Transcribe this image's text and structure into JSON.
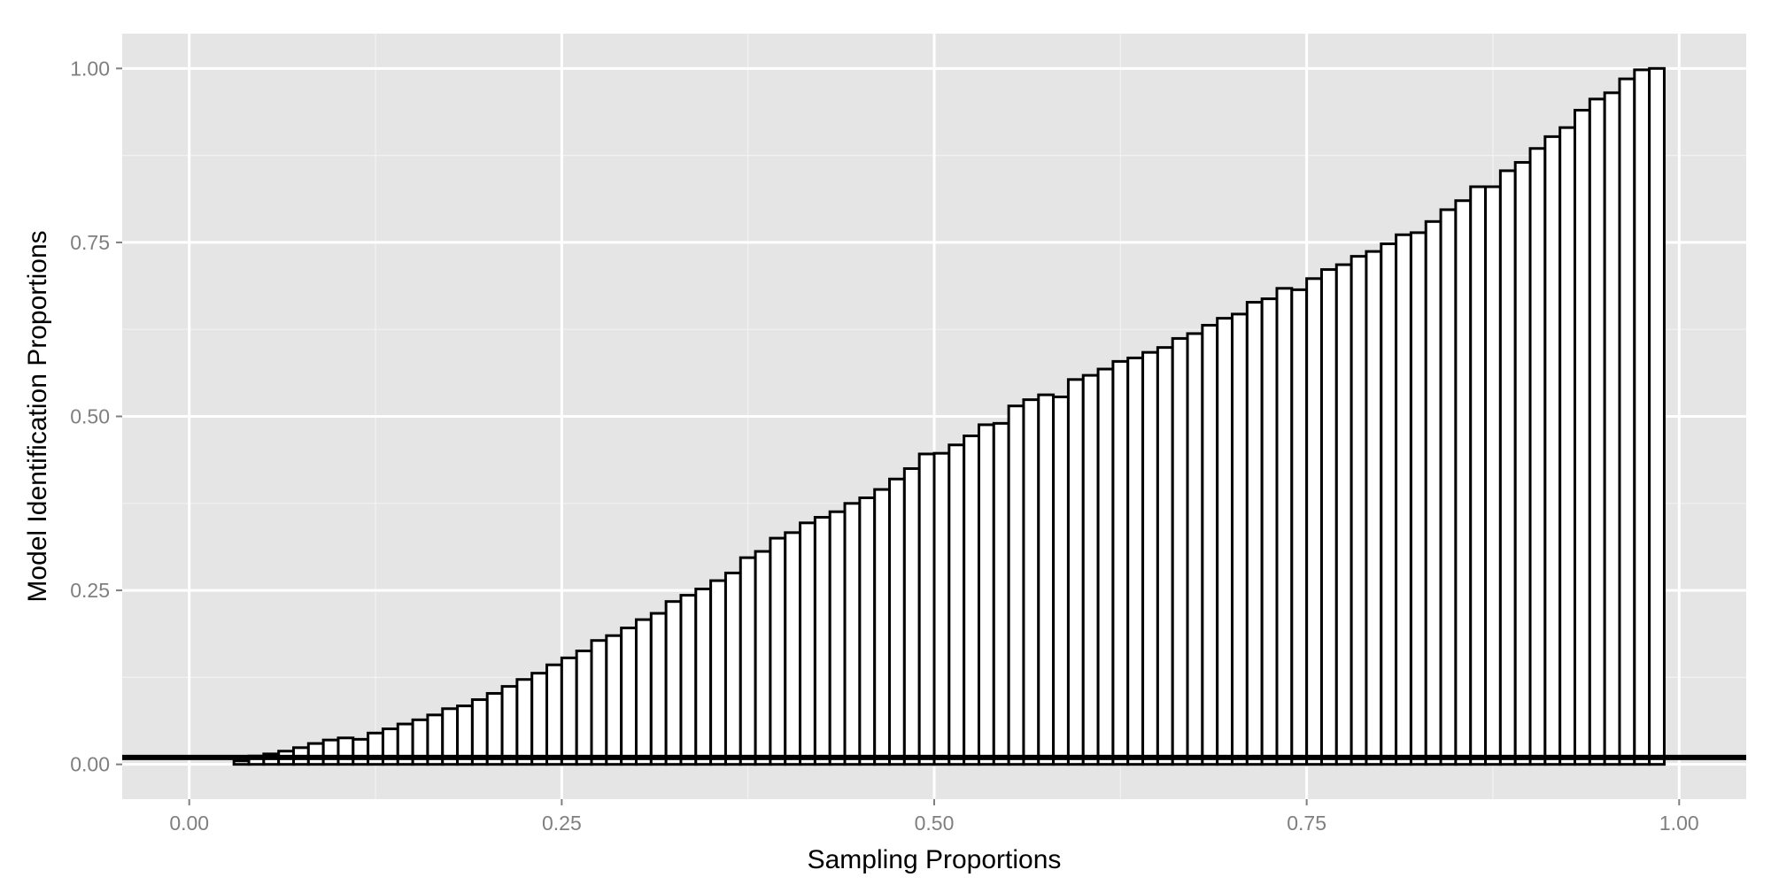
{
  "chart_data": {
    "type": "bar",
    "xlabel": "Sampling Proportions",
    "ylabel": "Model Identification Proportions",
    "xlim": [
      -0.045,
      1.045
    ],
    "ylim": [
      -0.05,
      1.05
    ],
    "x_ticks": [
      "0.00",
      "0.25",
      "0.50",
      "0.75",
      "1.00"
    ],
    "y_ticks": [
      "0.00",
      "0.25",
      "0.50",
      "0.75",
      "1.00"
    ],
    "x_tick_values": [
      0,
      0.25,
      0.5,
      0.75,
      1
    ],
    "y_tick_values": [
      0,
      0.25,
      0.5,
      0.75,
      1
    ],
    "bin_width": 0.01,
    "x": [
      0.01,
      0.02,
      0.03,
      0.04,
      0.05,
      0.06,
      0.07,
      0.08,
      0.09,
      0.1,
      0.11,
      0.12,
      0.13,
      0.14,
      0.15,
      0.16,
      0.17,
      0.18,
      0.19,
      0.2,
      0.21,
      0.22,
      0.23,
      0.24,
      0.25,
      0.26,
      0.27,
      0.28,
      0.29,
      0.3,
      0.31,
      0.32,
      0.33,
      0.34,
      0.35,
      0.36,
      0.37,
      0.38,
      0.39,
      0.4,
      0.41,
      0.42,
      0.43,
      0.44,
      0.45,
      0.46,
      0.47,
      0.48,
      0.49,
      0.5,
      0.51,
      0.52,
      0.53,
      0.54,
      0.55,
      0.56,
      0.57,
      0.58,
      0.59,
      0.6,
      0.61,
      0.62,
      0.63,
      0.64,
      0.65,
      0.66,
      0.67,
      0.68,
      0.69,
      0.7,
      0.71,
      0.72,
      0.73,
      0.74,
      0.75,
      0.76,
      0.77,
      0.78,
      0.79,
      0.8,
      0.81,
      0.82,
      0.83,
      0.84,
      0.85,
      0.86,
      0.87,
      0.88,
      0.89,
      0.9,
      0.91,
      0.92,
      0.93,
      0.94,
      0.95,
      0.96,
      0.97,
      0.98,
      0.99,
      1.0
    ],
    "values": [
      0.0,
      0.0,
      0.0,
      0.005,
      0.012,
      0.015,
      0.019,
      0.024,
      0.03,
      0.035,
      0.038,
      0.036,
      0.045,
      0.051,
      0.058,
      0.064,
      0.071,
      0.08,
      0.084,
      0.093,
      0.102,
      0.112,
      0.122,
      0.131,
      0.143,
      0.153,
      0.163,
      0.178,
      0.185,
      0.196,
      0.208,
      0.217,
      0.234,
      0.243,
      0.252,
      0.264,
      0.275,
      0.297,
      0.306,
      0.325,
      0.333,
      0.347,
      0.355,
      0.363,
      0.375,
      0.383,
      0.395,
      0.41,
      0.425,
      0.446,
      0.447,
      0.459,
      0.472,
      0.488,
      0.49,
      0.515,
      0.524,
      0.531,
      0.528,
      0.553,
      0.559,
      0.568,
      0.579,
      0.584,
      0.592,
      0.599,
      0.612,
      0.619,
      0.631,
      0.641,
      0.647,
      0.664,
      0.669,
      0.684,
      0.682,
      0.698,
      0.711,
      0.718,
      0.73,
      0.737,
      0.748,
      0.761,
      0.764,
      0.78,
      0.797,
      0.81,
      0.83,
      0.83,
      0.853,
      0.865,
      0.885,
      0.902,
      0.915,
      0.94,
      0.956,
      0.965,
      0.985,
      0.998,
      1.0,
      0.0
    ],
    "hline": 0.01,
    "grid": true,
    "panel_background": "#e5e5e5",
    "grid_major_color": "#ffffff",
    "grid_minor_color": "#f2f2f2",
    "bar_fill": "#ffffff",
    "bar_outline": "#000000",
    "hline_color": "#000000"
  }
}
